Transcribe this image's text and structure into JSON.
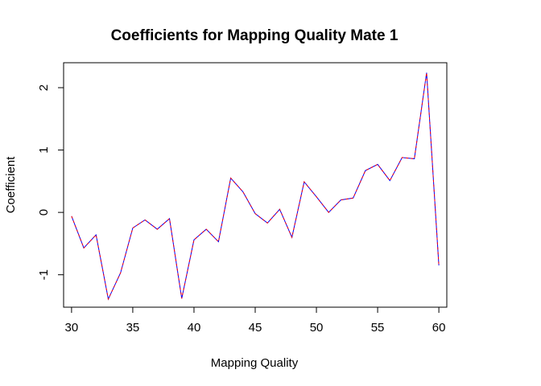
{
  "chart_data": {
    "type": "line",
    "title": "Coefficients for Mapping Quality Mate 1",
    "xlabel": "Mapping Quality",
    "ylabel": "Coefficient",
    "xlim": [
      29.35,
      60.65
    ],
    "ylim": [
      -1.52,
      2.4
    ],
    "x_ticks": [
      30,
      35,
      40,
      45,
      50,
      55,
      60
    ],
    "y_ticks": [
      -1,
      0,
      1,
      2
    ],
    "grid": false,
    "legend": "none",
    "x": [
      30,
      31,
      32,
      33,
      34,
      35,
      36,
      37,
      38,
      39,
      40,
      41,
      42,
      43,
      44,
      45,
      46,
      47,
      48,
      49,
      50,
      51,
      52,
      53,
      54,
      55,
      56,
      57,
      58,
      59,
      60
    ],
    "series": [
      {
        "color": "#0000ff",
        "style": "solid",
        "values": [
          -0.06,
          -0.57,
          -0.36,
          -1.39,
          -0.97,
          -0.25,
          -0.12,
          -0.27,
          -0.1,
          -1.38,
          -0.44,
          -0.27,
          -0.47,
          0.55,
          0.33,
          -0.02,
          -0.17,
          0.05,
          -0.4,
          0.49,
          0.25,
          0.0,
          0.2,
          0.23,
          0.67,
          0.77,
          0.51,
          0.88,
          0.86,
          2.24,
          -0.85
        ]
      },
      {
        "color": "#ff0000",
        "style": "dashed",
        "values": [
          -0.06,
          -0.57,
          -0.36,
          -1.39,
          -0.97,
          -0.25,
          -0.12,
          -0.27,
          -0.1,
          -1.38,
          -0.44,
          -0.27,
          -0.47,
          0.55,
          0.33,
          -0.02,
          -0.17,
          0.05,
          -0.4,
          0.49,
          0.25,
          0.0,
          0.2,
          0.23,
          0.67,
          0.77,
          0.51,
          0.88,
          0.86,
          2.24,
          -0.85
        ]
      }
    ]
  }
}
